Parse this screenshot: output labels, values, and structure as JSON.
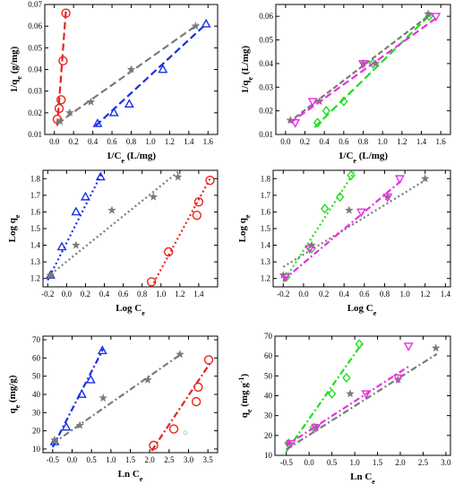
{
  "chart_data": [
    {
      "type": "scatter",
      "xlabel": "1/C",
      "xlabel_sub": "e",
      "xlabel_tail": " (L/mg)",
      "ylabel": "1/q",
      "ylabel_sub": "e",
      "ylabel_tail": " (g/mg)",
      "xlim": [
        -0.1,
        1.7
      ],
      "ylim": [
        0.01,
        0.07
      ],
      "xticks": [
        "0.0",
        "0.2",
        "0.4",
        "0.6",
        "0.8",
        "1.0",
        "1.2",
        "1.4",
        "1.6"
      ],
      "xtick_vals": [
        0,
        0.2,
        0.4,
        0.6,
        0.8,
        1.0,
        1.2,
        1.4,
        1.6
      ],
      "yticks": [
        "0.01",
        "0.02",
        "0.03",
        "0.04",
        "0.05",
        "0.06",
        "0.07"
      ],
      "ytick_vals": [
        0.01,
        0.02,
        0.03,
        0.04,
        0.05,
        0.06,
        0.07
      ],
      "series": [
        {
          "marker": "circle",
          "color": "#e8231b",
          "dash": "8,4",
          "x": [
            0.03,
            0.05,
            0.07,
            0.09,
            0.12
          ],
          "y": [
            0.017,
            0.022,
            0.026,
            0.044,
            0.066
          ],
          "fit": [
            [
              0.03,
              0.014
            ],
            [
              0.12,
              0.067
            ]
          ]
        },
        {
          "marker": "star",
          "color": "#7a7a7a",
          "dash": "8,4",
          "x": [
            0.06,
            0.16,
            0.38,
            0.8,
            1.47
          ],
          "y": [
            0.016,
            0.02,
            0.025,
            0.04,
            0.06
          ],
          "fit": [
            [
              0.03,
              0.015
            ],
            [
              1.5,
              0.061
            ]
          ]
        },
        {
          "marker": "triangle",
          "color": "#1a2fe0",
          "dash": "8,4",
          "x": [
            0.45,
            0.62,
            0.78,
            1.13,
            1.58
          ],
          "y": [
            0.015,
            0.02,
            0.024,
            0.04,
            0.061
          ],
          "fit": [
            [
              0.43,
              0.014
            ],
            [
              1.58,
              0.061
            ]
          ]
        }
      ]
    },
    {
      "type": "scatter",
      "xlabel": "1/C",
      "xlabel_sub": "e",
      "xlabel_tail": " (L/mg)",
      "ylabel": "1/q",
      "ylabel_sub": "e",
      "ylabel_tail": " (L/mg)",
      "xlim": [
        -0.1,
        1.7
      ],
      "ylim": [
        0.01,
        0.065
      ],
      "xticks": [
        "0.0",
        "0.2",
        "0.4",
        "0.6",
        "0.8",
        "1.0",
        "1.2",
        "1.4",
        "1.6"
      ],
      "xtick_vals": [
        0,
        0.2,
        0.4,
        0.6,
        0.8,
        1.0,
        1.2,
        1.4,
        1.6
      ],
      "yticks": [
        "0.01",
        "0.02",
        "0.03",
        "0.04",
        "0.05",
        "0.06"
      ],
      "ytick_vals": [
        0.01,
        0.02,
        0.03,
        0.04,
        0.05,
        0.06
      ],
      "series": [
        {
          "marker": "diamond",
          "color": "#22dd22",
          "dash": "9,4",
          "x": [
            0.33,
            0.42,
            0.6,
            0.9,
            1.48
          ],
          "y": [
            0.015,
            0.02,
            0.024,
            0.04,
            0.06
          ],
          "fit": [
            [
              0.3,
              0.013
            ],
            [
              1.5,
              0.061
            ]
          ]
        },
        {
          "marker": "star",
          "color": "#7a7a7a",
          "dash": "6,3",
          "x": [
            0.05,
            0.35,
            0.8,
            0.93,
            1.47
          ],
          "y": [
            0.016,
            0.024,
            0.04,
            0.04,
            0.061
          ],
          "fit": [
            [
              0.03,
              0.015
            ],
            [
              1.5,
              0.061
            ]
          ]
        },
        {
          "marker": "inv_triangle",
          "color": "#e830e0",
          "dash": "8,4",
          "x": [
            0.1,
            0.28,
            0.8,
            1.55
          ],
          "y": [
            0.015,
            0.024,
            0.04,
            0.06
          ],
          "fit": [
            [
              0.05,
              0.015
            ],
            [
              1.58,
              0.06
            ]
          ]
        }
      ]
    },
    {
      "type": "scatter",
      "xlabel": "Log C",
      "xlabel_sub": "e",
      "xlabel_tail": "",
      "ylabel": "Log q",
      "ylabel_sub": "e",
      "ylabel_tail": "",
      "xlim": [
        -0.25,
        1.6
      ],
      "ylim": [
        1.15,
        1.85
      ],
      "xticks": [
        "-0.2",
        "0.0",
        "0.2",
        "0.4",
        "0.6",
        "0.8",
        "1.0",
        "1.2",
        "1.4"
      ],
      "xtick_vals": [
        -0.2,
        0,
        0.2,
        0.4,
        0.6,
        0.8,
        1.0,
        1.2,
        1.4
      ],
      "yticks": [
        "1.2",
        "1.3",
        "1.4",
        "1.5",
        "1.6",
        "1.7",
        "1.8"
      ],
      "ytick_vals": [
        1.2,
        1.3,
        1.4,
        1.5,
        1.6,
        1.7,
        1.8
      ],
      "series": [
        {
          "marker": "triangle",
          "color": "#1a2fe0",
          "dash": "2,3",
          "x": [
            -0.17,
            -0.05,
            0.1,
            0.2,
            0.36
          ],
          "y": [
            1.22,
            1.39,
            1.6,
            1.69,
            1.81
          ],
          "fit": [
            [
              -0.2,
              1.19
            ],
            [
              0.38,
              1.84
            ]
          ]
        },
        {
          "marker": "star",
          "color": "#7a7a7a",
          "dash": "2,3",
          "x": [
            -0.17,
            0.1,
            0.48,
            0.92,
            1.18
          ],
          "y": [
            1.22,
            1.4,
            1.61,
            1.69,
            1.81
          ],
          "fit": [
            [
              -0.2,
              1.21
            ],
            [
              1.18,
              1.84
            ]
          ]
        },
        {
          "marker": "circle",
          "color": "#e8231b",
          "dash": "2,3",
          "x": [
            0.9,
            1.08,
            1.38,
            1.4,
            1.52
          ],
          "y": [
            1.18,
            1.36,
            1.58,
            1.66,
            1.79
          ],
          "fit": [
            [
              0.9,
              1.15
            ],
            [
              1.52,
              1.8
            ]
          ]
        }
      ]
    },
    {
      "type": "scatter",
      "xlabel": "Log C",
      "xlabel_sub": "e",
      "xlabel_tail": "",
      "ylabel": "Log q",
      "ylabel_sub": "e",
      "ylabel_tail": "",
      "xlim": [
        -0.3,
        1.45
      ],
      "ylim": [
        1.15,
        1.85
      ],
      "xticks": [
        "-0.2",
        "0.0",
        "0.2",
        "0.4",
        "0.6",
        "0.8",
        "1.0",
        "1.2",
        "1.4"
      ],
      "xtick_vals": [
        -0.2,
        0,
        0.2,
        0.4,
        0.6,
        0.8,
        1.0,
        1.2,
        1.4
      ],
      "yticks": [
        "1.2",
        "1.3",
        "1.4",
        "1.5",
        "1.6",
        "1.7",
        "1.8"
      ],
      "ytick_vals": [
        1.2,
        1.3,
        1.4,
        1.5,
        1.6,
        1.7,
        1.8
      ],
      "series": [
        {
          "marker": "diamond",
          "color": "#22dd22",
          "dash": "2,3",
          "x": [
            -0.17,
            0.08,
            0.21,
            0.36,
            0.47
          ],
          "y": [
            1.21,
            1.38,
            1.62,
            1.69,
            1.82
          ],
          "fit": [
            [
              -0.2,
              1.18
            ],
            [
              0.5,
              1.84
            ]
          ]
        },
        {
          "marker": "star",
          "color": "#7a7a7a",
          "dash": "2,3",
          "x": [
            -0.2,
            0.08,
            0.45,
            0.83,
            1.2
          ],
          "y": [
            1.22,
            1.4,
            1.61,
            1.69,
            1.8
          ],
          "fit": [
            [
              -0.2,
              1.27
            ],
            [
              1.2,
              1.79
            ]
          ]
        },
        {
          "marker": "inv_triangle",
          "color": "#e830e0",
          "dash": "7,3,2,3",
          "x": [
            -0.18,
            0.06,
            0.57,
            0.83,
            0.95
          ],
          "y": [
            1.21,
            1.38,
            1.6,
            1.69,
            1.8
          ],
          "fit": [
            [
              -0.2,
              1.19
            ],
            [
              0.97,
              1.79
            ]
          ]
        }
      ]
    },
    {
      "type": "scatter",
      "xlabel": "Ln C",
      "xlabel_sub": "e",
      "xlabel_tail": "",
      "ylabel": "q",
      "ylabel_sub": "e",
      "ylabel_tail": " (mg/g)",
      "xlim": [
        -0.75,
        3.75
      ],
      "ylim": [
        8,
        72
      ],
      "xticks": [
        "-0.5",
        "0.0",
        "0.5",
        "1.0",
        "1.5",
        "2.0",
        "2.5",
        "3.0",
        "3.5"
      ],
      "xtick_vals": [
        -0.5,
        0,
        0.5,
        1.0,
        1.5,
        2.0,
        2.5,
        3.0,
        3.5
      ],
      "yticks": [
        "10",
        "20",
        "30",
        "40",
        "50",
        "60",
        "70"
      ],
      "ytick_vals": [
        10,
        20,
        30,
        40,
        50,
        60,
        70
      ],
      "series": [
        {
          "marker": "triangle",
          "color": "#1a2fe0",
          "dash": "7,3,2,3",
          "x": [
            -0.45,
            -0.15,
            0.25,
            0.48,
            0.78
          ],
          "y": [
            14,
            22,
            40,
            48,
            64
          ],
          "fit": [
            [
              -0.5,
              11
            ],
            [
              0.8,
              65
            ]
          ]
        },
        {
          "marker": "star",
          "color": "#7a7a7a",
          "dash": "7,3,2,3",
          "x": [
            -0.45,
            0.2,
            0.8,
            1.95,
            2.78
          ],
          "y": [
            15,
            23,
            38,
            48,
            62
          ],
          "fit": [
            [
              -0.5,
              13
            ],
            [
              2.8,
              62
            ]
          ]
        },
        {
          "marker": "circle",
          "color": "#e8231b",
          "dash": "7,3,2,3",
          "x": [
            2.1,
            2.62,
            3.2,
            3.25,
            3.52
          ],
          "y": [
            12,
            21,
            36,
            44,
            59
          ],
          "fit": [
            [
              2.05,
              9
            ],
            [
              3.55,
              57
            ]
          ]
        },
        {
          "marker": "circle",
          "color": "#bbbbbb",
          "dash": "",
          "x": [
            2.92
          ],
          "y": [
            19
          ],
          "small": true
        }
      ]
    },
    {
      "type": "scatter",
      "xlabel": "Ln C",
      "xlabel_sub": "e",
      "xlabel_tail": "",
      "ylabel": "q",
      "ylabel_sub": "e",
      "ylabel_tail": " (mg g",
      "ylabel_sup": "-1",
      "ylabel_end": ")",
      "xlim": [
        -0.75,
        3.1
      ],
      "ylim": [
        10,
        70
      ],
      "xticks": [
        "-0.5",
        "0.0",
        "0.5",
        "1.0",
        "1.5",
        "2.0",
        "2.5",
        "3.0"
      ],
      "xtick_vals": [
        -0.5,
        0,
        0.5,
        1.0,
        1.5,
        2.0,
        2.5,
        3.0
      ],
      "yticks": [
        "10",
        "20",
        "30",
        "40",
        "50",
        "60",
        "70"
      ],
      "ytick_vals": [
        10,
        20,
        30,
        40,
        50,
        60,
        70
      ],
      "series": [
        {
          "marker": "diamond",
          "color": "#22dd22",
          "dash": "7,3,2,3",
          "x": [
            -0.45,
            0.1,
            0.5,
            0.82,
            1.1
          ],
          "y": [
            16,
            24,
            41,
            49,
            66
          ],
          "fit": [
            [
              -0.5,
              12
            ],
            [
              1.15,
              66
            ]
          ]
        },
        {
          "marker": "star",
          "color": "#7a7a7a",
          "dash": "7,3,2,3",
          "x": [
            -0.45,
            0.15,
            0.9,
            1.95,
            2.78
          ],
          "y": [
            16,
            24,
            41,
            48,
            64
          ],
          "fit": [
            [
              -0.5,
              13
            ],
            [
              2.8,
              61
            ]
          ]
        },
        {
          "marker": "inv_triangle",
          "color": "#e830e0",
          "dash": "7,3,2,3",
          "x": [
            -0.4,
            0.15,
            1.25,
            1.95,
            2.18
          ],
          "y": [
            16,
            24,
            41,
            49,
            65
          ],
          "fit": [
            [
              -0.5,
              15
            ],
            [
              2.2,
              55
            ]
          ]
        }
      ]
    }
  ]
}
